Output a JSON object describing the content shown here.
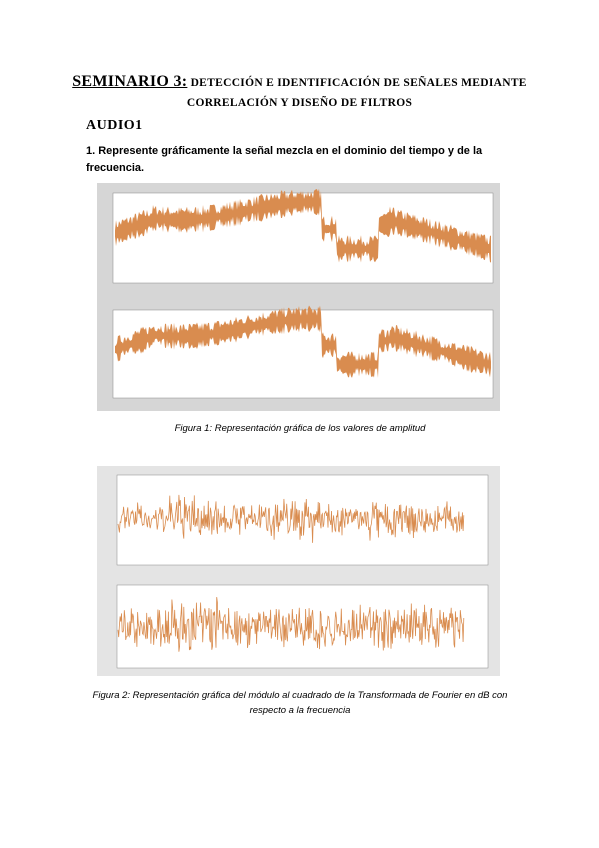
{
  "header": {
    "title_lead": "SEMINARIO 3:",
    "title_rest": "DETECCIÓN E IDENTIFICACIÓN DE SEÑALES MEDIANTE CORRELACIÓN Y DISEÑO DE FILTROS"
  },
  "section": {
    "heading": "AUDIO1",
    "question": "1. Represente gráficamente la señal mezcla en el dominio del tiempo y de la frecuencia."
  },
  "figures": [
    {
      "caption": "Figura 1: Representación gráfica de los valores de amplitud"
    },
    {
      "caption": "Figura 2: Representación gráfica del módulo al cuadrado de la Transformada de Fourier en dB con respecto a la frecuencia"
    }
  ]
}
